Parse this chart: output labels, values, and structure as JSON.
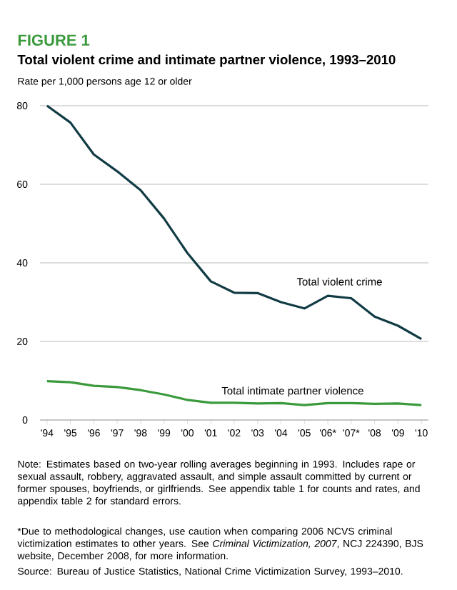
{
  "chart_data": {
    "type": "line",
    "title": "FIGURE 1",
    "subtitle": "Total violent crime and intimate partner violence, 1993–2010",
    "ylabel": "Rate per 1,000 persons age 12 or older",
    "categories": [
      "'94",
      "'95",
      "'96",
      "'97",
      "'98",
      "'99",
      "'00",
      "'01",
      "'02",
      "'03",
      "'04",
      "'05",
      "'06*",
      "'07*",
      "'08",
      "'09",
      "'10"
    ],
    "series": [
      {
        "name": "Total violent crime",
        "color": "#123c45",
        "values": [
          80,
          75.7,
          67.6,
          63.3,
          58.5,
          51.3,
          42.5,
          35.3,
          32.4,
          32.3,
          30,
          28.4,
          31.6,
          31,
          26.3,
          24,
          20.6
        ]
      },
      {
        "name": "Total intimate partner violence",
        "color": "#3a9a3c",
        "values": [
          9.9,
          9.6,
          8.7,
          8.4,
          7.6,
          6.5,
          5.1,
          4.4,
          4.4,
          4.2,
          4.3,
          3.8,
          4.3,
          4.3,
          4.1,
          4.2,
          3.8
        ]
      }
    ],
    "ylim": [
      0,
      80
    ],
    "yticks": [
      0,
      20,
      40,
      60,
      80
    ],
    "grid": "y",
    "legend": false,
    "marker": "none",
    "line_style": "solid",
    "annotations": [
      "Note: Estimates based on two-year rolling averages beginning in 1993. Includes rape or sexual assault, robbery, aggravated assault, and simple assault committed by current or former spouses, boyfriends, or girlfriends. See appendix table 1 for counts and rates, and appendix table 2 for standard errors.",
      "*Due to methodological changes, use caution when comparing 2006 NCVS criminal victimization estimates to other years. See *Criminal Victimization, 2007*, NCJ 224390, BJS website, December 2008, for more information.",
      "Source: Bureau of Justice Statistics, National Crime Victimization Survey, 1993–2010."
    ]
  }
}
